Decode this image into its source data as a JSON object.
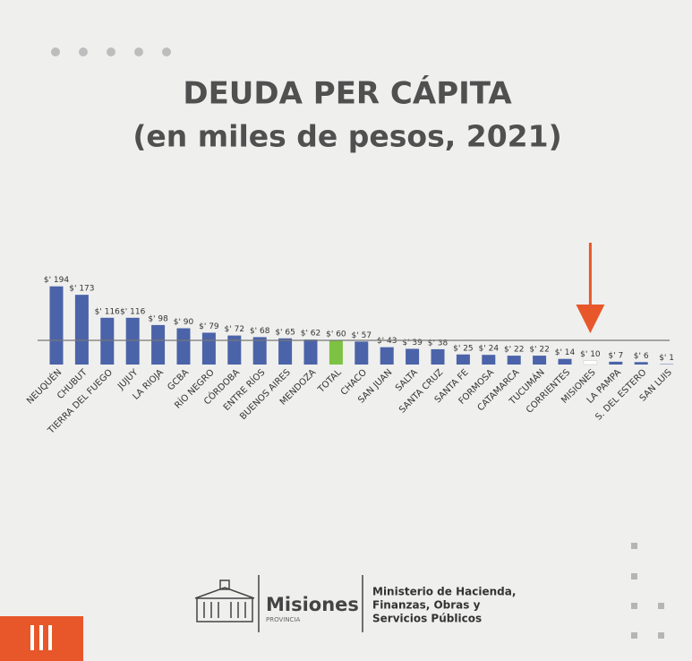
{
  "chart_data": {
    "type": "bar",
    "title": "DEUDA PER CÁPITA",
    "subtitle": "(en miles de pesos, 2021)",
    "categories": [
      "NEUQUÉN",
      "CHUBUT",
      "TIERRA DEL FUEGO",
      "JUJUY",
      "LA RIOJA",
      "GCBA",
      "RÍO NEGRO",
      "CÓRDOBA",
      "ENTRE RÍOS",
      "BUENOS AIRES",
      "MENDOZA",
      "TOTAL",
      "CHACO",
      "SAN JUAN",
      "SALTA",
      "SANTA CRUZ",
      "SANTA FE",
      "FORMOSA",
      "CATAMARCA",
      "TUCUMÁN",
      "CORRIENTES",
      "MISIONES",
      "LA PAMPA",
      "S. DEL ESTERO",
      "SAN LUIS"
    ],
    "values": [
      194,
      173,
      116,
      116,
      98,
      90,
      79,
      72,
      68,
      65,
      62,
      60,
      57,
      43,
      39,
      38,
      25,
      24,
      22,
      22,
      14,
      10,
      7,
      6,
      1
    ],
    "value_labels": [
      "$' 194",
      "$' 173",
      "$' 116",
      "$' 116",
      "$' 98",
      "$' 90",
      "$' 79",
      "$' 72",
      "$' 68",
      "$' 65",
      "$' 62",
      "$' 60",
      "$' 57",
      "$' 43",
      "$' 39",
      "$' 38",
      "$' 25",
      "$' 24",
      "$' 22",
      "$' 22",
      "$' 14",
      "$' 10",
      "$' 7",
      "$' 6",
      "$' 1"
    ],
    "colors": [
      "#4b63a8",
      "#4b63a8",
      "#4b63a8",
      "#4b63a8",
      "#4b63a8",
      "#4b63a8",
      "#4b63a8",
      "#4b63a8",
      "#4b63a8",
      "#4b63a8",
      "#4b63a8",
      "#7dc242",
      "#4b63a8",
      "#4b63a8",
      "#4b63a8",
      "#4b63a8",
      "#4b63a8",
      "#4b63a8",
      "#4b63a8",
      "#4b63a8",
      "#4b63a8",
      "#ffffff",
      "#4b63a8",
      "#4b63a8",
      "#4b63a8"
    ],
    "arrow_color": "#e8572a"
  },
  "logo": {
    "name": "Misiones",
    "subtitle": "PROVINCIA"
  },
  "ministry": [
    "Ministerio de Hacienda,",
    "Finanzas, Obras y",
    "Servicios Públicos"
  ]
}
